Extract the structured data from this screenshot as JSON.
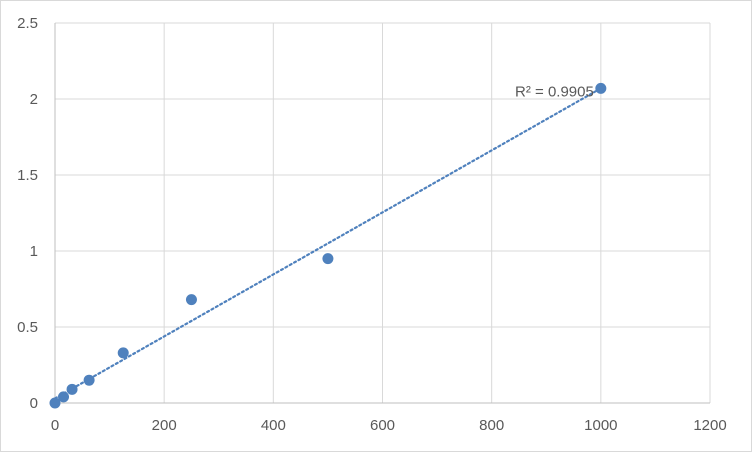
{
  "chart_data": {
    "type": "scatter",
    "title": "",
    "xlabel": "",
    "ylabel": "",
    "xlim": [
      0,
      1200
    ],
    "ylim": [
      0,
      2.5
    ],
    "x_ticks": [
      0,
      200,
      400,
      600,
      800,
      1000,
      1200
    ],
    "y_ticks": [
      0,
      0.5,
      1,
      1.5,
      2,
      2.5
    ],
    "x_tick_labels": [
      "0",
      "200",
      "400",
      "600",
      "800",
      "1000",
      "1200"
    ],
    "y_tick_labels": [
      "0",
      "0.5",
      "1",
      "1.5",
      "2",
      "2.5"
    ],
    "grid": true,
    "legend": "none",
    "series": [
      {
        "x": [
          0,
          15.6,
          31.25,
          62.5,
          125,
          250,
          500,
          1000
        ],
        "y": [
          0.0,
          0.04,
          0.09,
          0.15,
          0.33,
          0.68,
          0.95,
          2.07
        ],
        "color": "#4f81bd"
      }
    ],
    "trendline": {
      "type": "linear",
      "style": "dotted",
      "color": "#4f81bd",
      "x_range": [
        0,
        1000
      ],
      "y_range": [
        0.03,
        2.07
      ]
    },
    "annotations": [
      {
        "text": "R² = 0.9905",
        "x": 1000,
        "y": 2.07
      }
    ]
  }
}
